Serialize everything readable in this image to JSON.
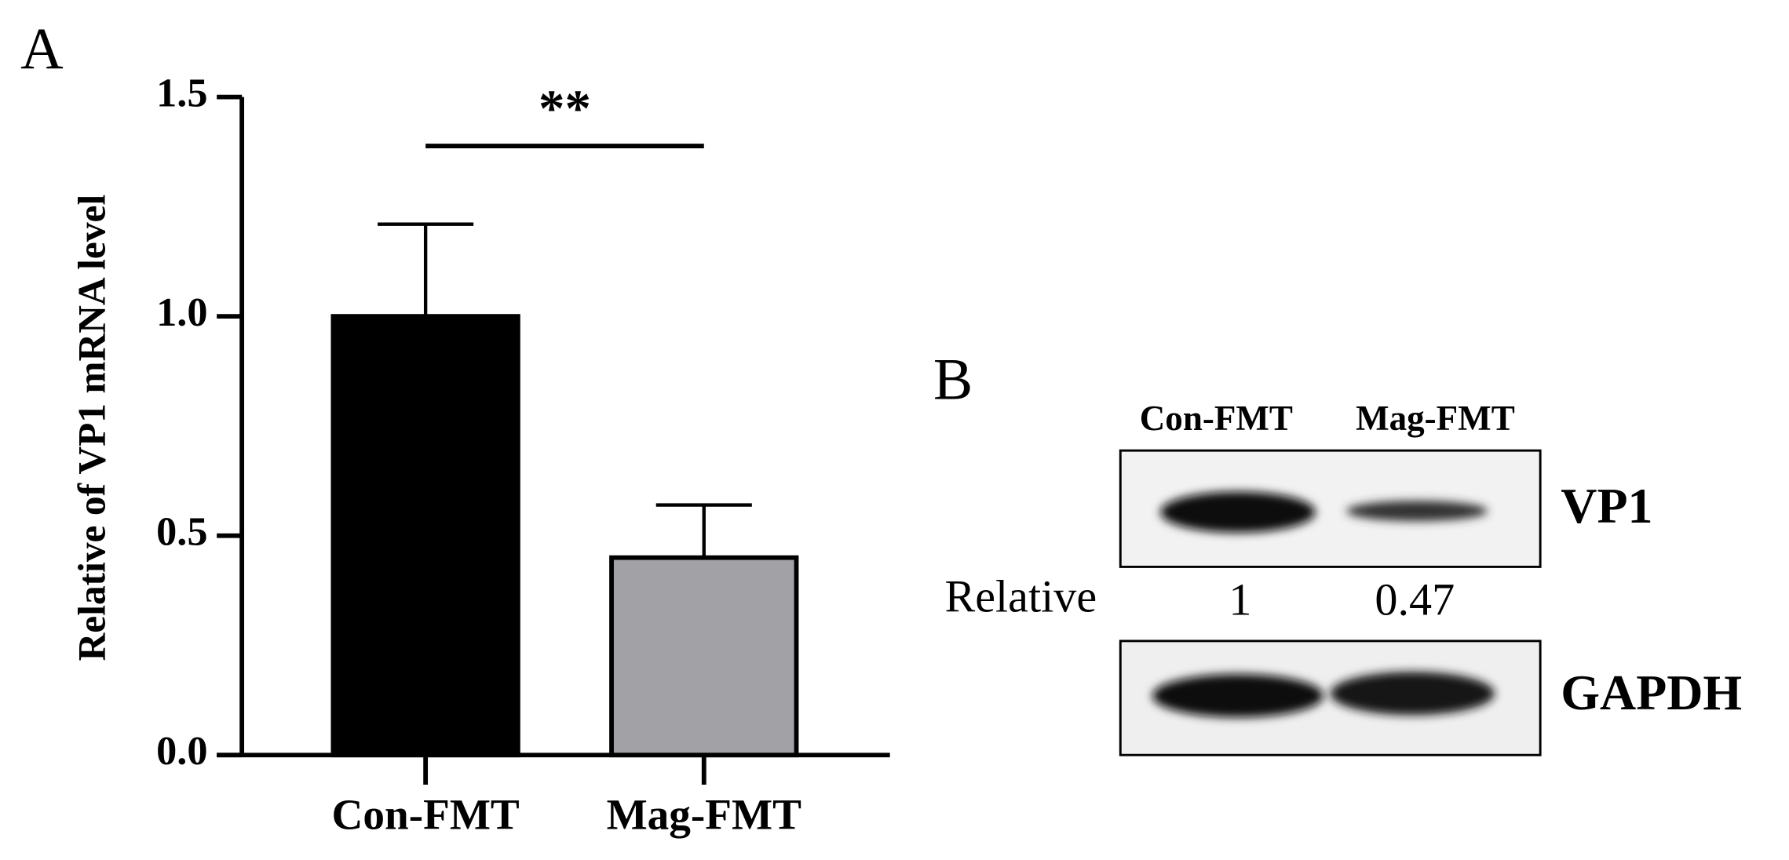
{
  "chart_data": {
    "type": "bar",
    "panel_label": "A",
    "ylabel": "Relative of VP1 mRNA level",
    "categories": [
      "Con-FMT",
      "Mag-FMT"
    ],
    "values": [
      1.0,
      0.45
    ],
    "errors": [
      0.21,
      0.12
    ],
    "colors": [
      "#000000",
      "#a2a1a6"
    ],
    "ylim": [
      0,
      1.5
    ],
    "yticks": [
      {
        "value": 0,
        "label": "0.0"
      },
      {
        "value": 0.5,
        "label": "0.5"
      },
      {
        "value": 1,
        "label": "1.0"
      },
      {
        "value": 1.5,
        "label": "1.5"
      }
    ],
    "significance": "**"
  },
  "blot": {
    "panel_label": "B",
    "lanes": [
      "Con-FMT",
      "Mag-FMT"
    ],
    "rows": [
      "VP1",
      "GAPDH"
    ],
    "relative_label": "Relative",
    "relative_values": [
      1,
      0.47
    ]
  }
}
